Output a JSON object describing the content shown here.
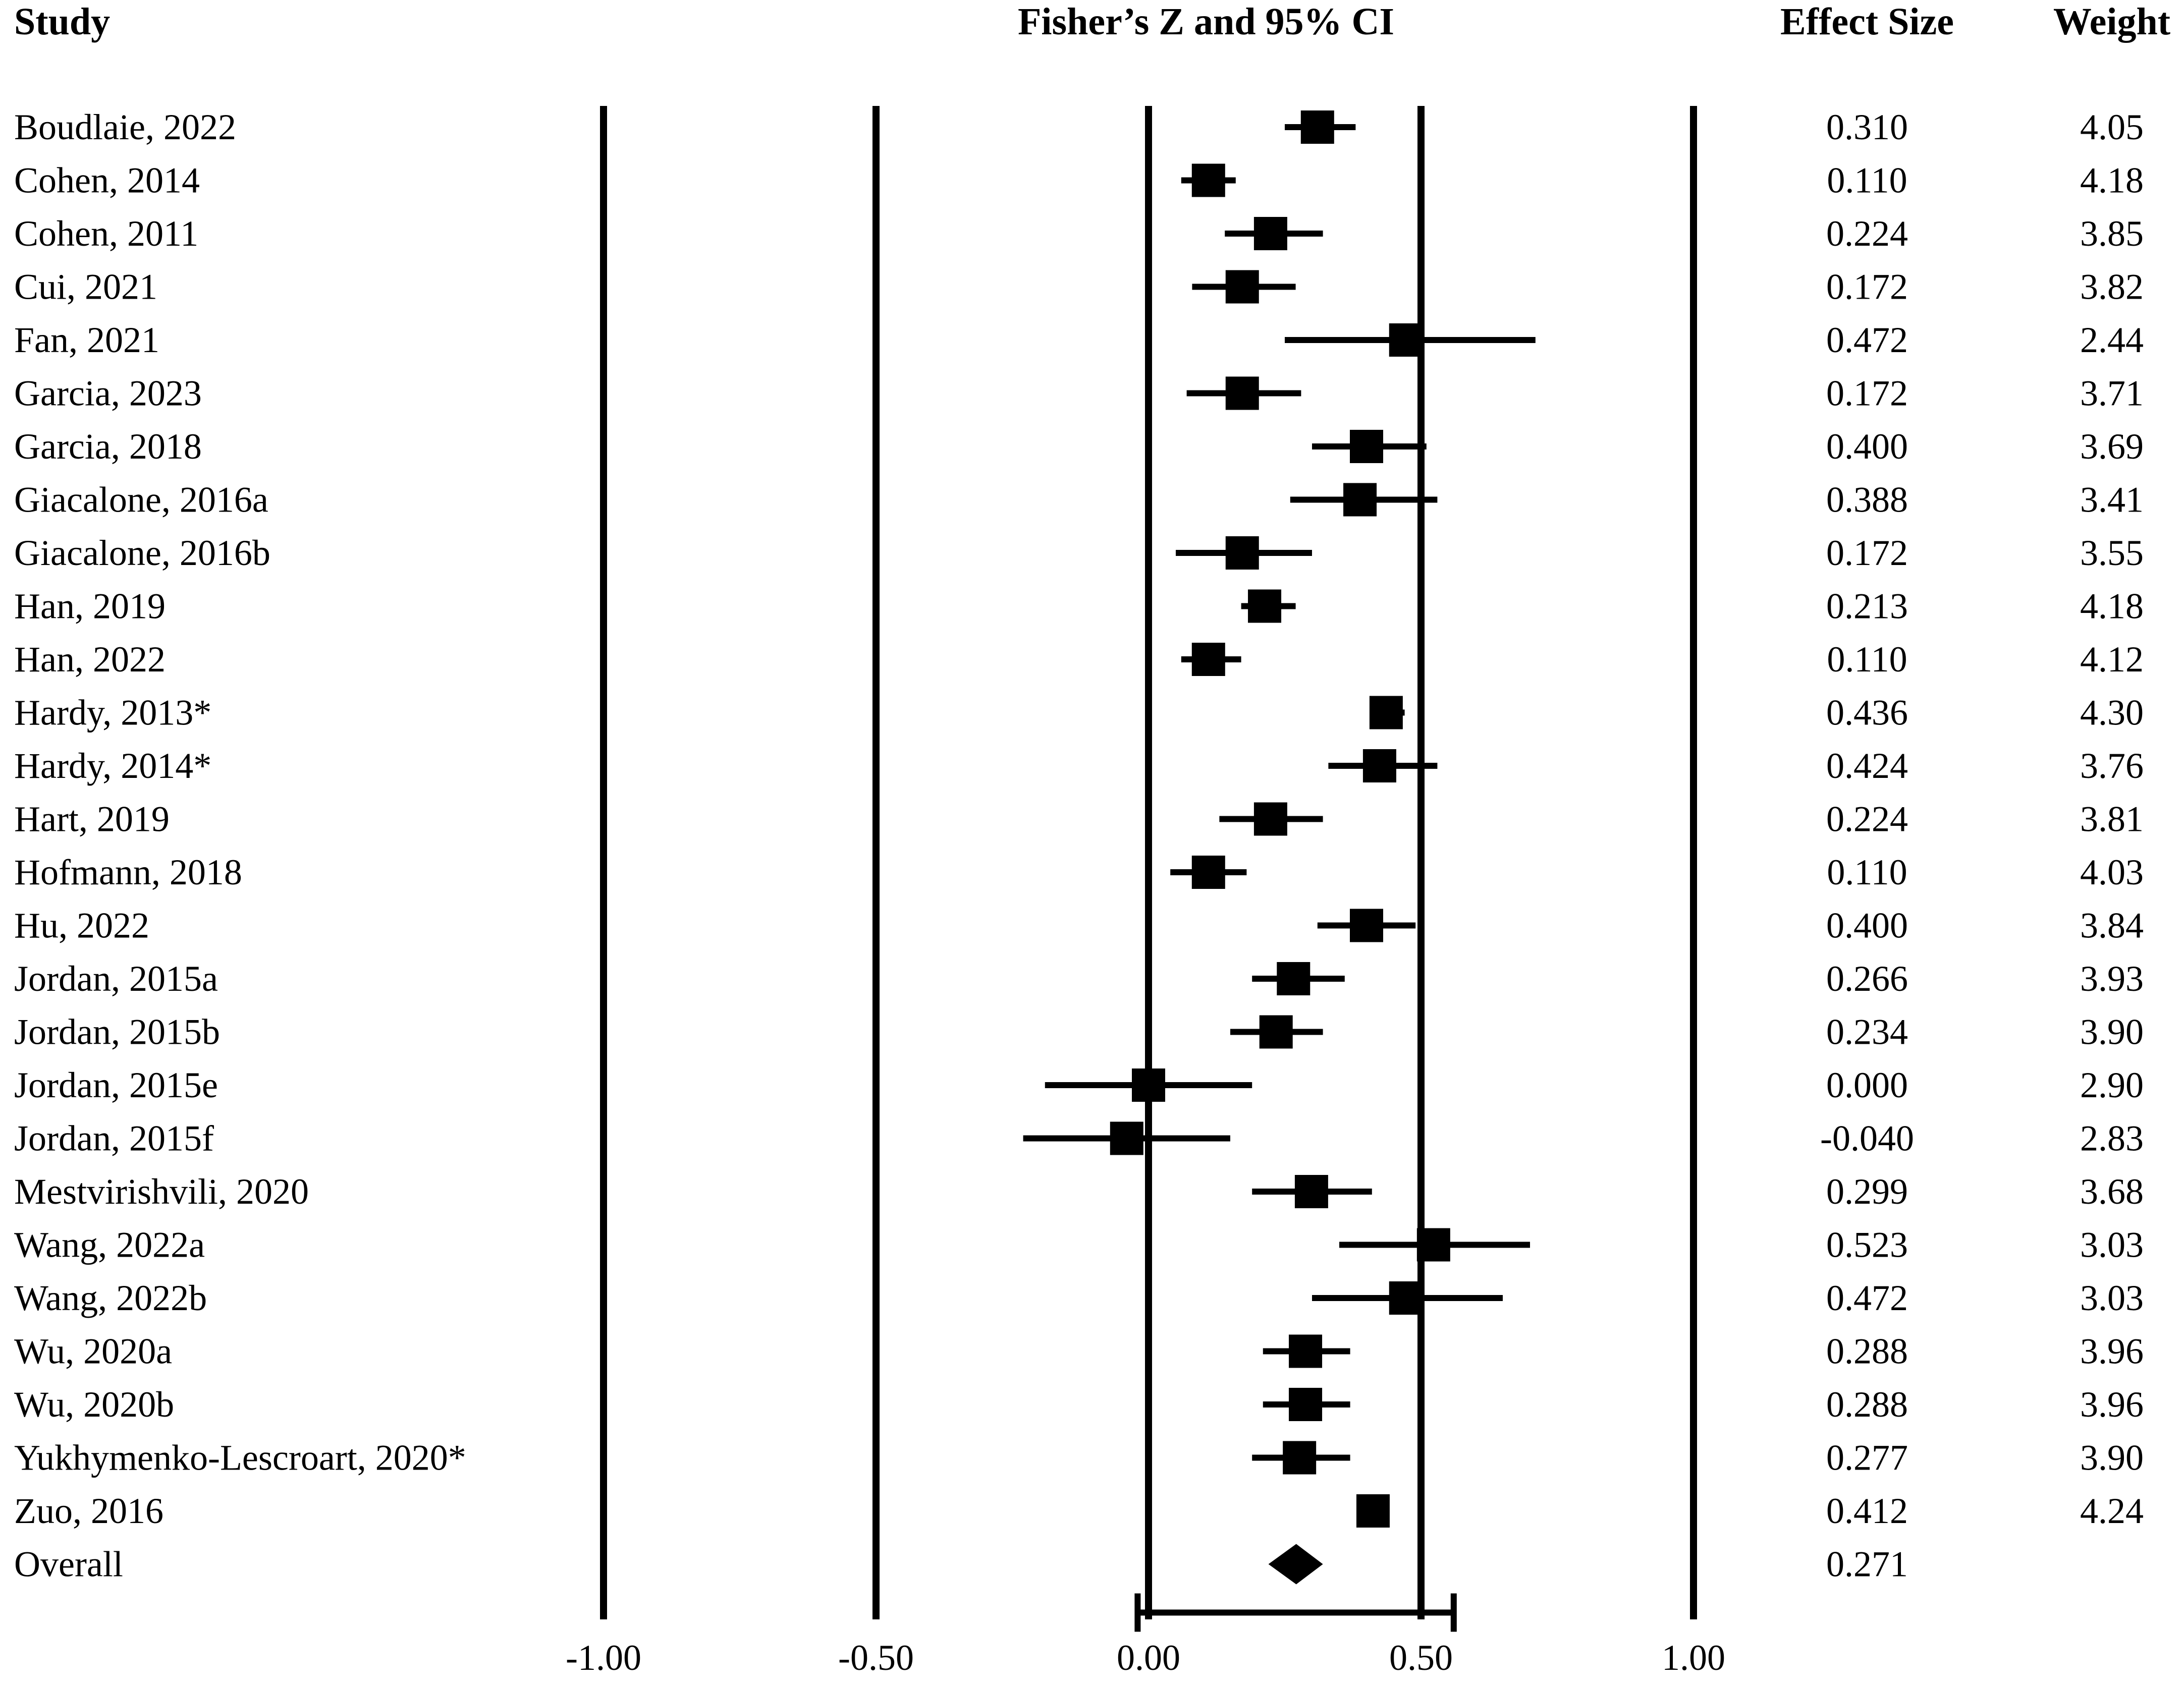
{
  "chart_data": {
    "type": "forest",
    "headers": {
      "study": "Study",
      "title": "Fisher’s Z and 95% CI",
      "effect_size": "Effect Size",
      "weight": "Weight"
    },
    "xlim": [
      -1.0,
      1.0
    ],
    "x_ticks": [
      -1.0,
      -0.5,
      0.0,
      0.5,
      1.0
    ],
    "x_tick_labels": [
      "-1.00",
      "-0.50",
      "0.00",
      "0.50",
      "1.00"
    ],
    "reference_lines": [
      -1.0,
      -0.5,
      0.0,
      0.5,
      1.0
    ],
    "studies": [
      {
        "name": "Boudlaie, 2022",
        "es": 0.31,
        "es_label": "0.310",
        "lower": 0.25,
        "upper": 0.38,
        "weight": "4.05"
      },
      {
        "name": "Cohen, 2014",
        "es": 0.11,
        "es_label": "0.110",
        "lower": 0.06,
        "upper": 0.16,
        "weight": "4.18"
      },
      {
        "name": "Cohen, 2011",
        "es": 0.224,
        "es_label": "0.224",
        "lower": 0.14,
        "upper": 0.32,
        "weight": "3.85"
      },
      {
        "name": "Cui, 2021",
        "es": 0.172,
        "es_label": "0.172",
        "lower": 0.08,
        "upper": 0.27,
        "weight": "3.82"
      },
      {
        "name": "Fan, 2021",
        "es": 0.472,
        "es_label": "0.472",
        "lower": 0.25,
        "upper": 0.71,
        "weight": "2.44"
      },
      {
        "name": "Garcia, 2023",
        "es": 0.172,
        "es_label": "0.172",
        "lower": 0.07,
        "upper": 0.28,
        "weight": "3.71"
      },
      {
        "name": "Garcia, 2018",
        "es": 0.4,
        "es_label": "0.400",
        "lower": 0.3,
        "upper": 0.51,
        "weight": "3.69"
      },
      {
        "name": "Giacalone, 2016a",
        "es": 0.388,
        "es_label": "0.388",
        "lower": 0.26,
        "upper": 0.53,
        "weight": "3.41"
      },
      {
        "name": "Giacalone, 2016b",
        "es": 0.172,
        "es_label": "0.172",
        "lower": 0.05,
        "upper": 0.3,
        "weight": "3.55"
      },
      {
        "name": "Han, 2019",
        "es": 0.213,
        "es_label": "0.213",
        "lower": 0.17,
        "upper": 0.27,
        "weight": "4.18"
      },
      {
        "name": "Han, 2022",
        "es": 0.11,
        "es_label": "0.110",
        "lower": 0.06,
        "upper": 0.17,
        "weight": "4.12"
      },
      {
        "name": "Hardy, 2013*",
        "es": 0.436,
        "es_label": "0.436",
        "lower": 0.41,
        "upper": 0.47,
        "weight": "4.30"
      },
      {
        "name": "Hardy, 2014*",
        "es": 0.424,
        "es_label": "0.424",
        "lower": 0.33,
        "upper": 0.53,
        "weight": "3.76"
      },
      {
        "name": "Hart, 2019",
        "es": 0.224,
        "es_label": "0.224",
        "lower": 0.13,
        "upper": 0.32,
        "weight": "3.81"
      },
      {
        "name": "Hofmann, 2018",
        "es": 0.11,
        "es_label": "0.110",
        "lower": 0.04,
        "upper": 0.18,
        "weight": "4.03"
      },
      {
        "name": "Hu, 2022",
        "es": 0.4,
        "es_label": "0.400",
        "lower": 0.31,
        "upper": 0.49,
        "weight": "3.84"
      },
      {
        "name": "Jordan, 2015a",
        "es": 0.266,
        "es_label": "0.266",
        "lower": 0.19,
        "upper": 0.36,
        "weight": "3.93"
      },
      {
        "name": "Jordan, 2015b",
        "es": 0.234,
        "es_label": "0.234",
        "lower": 0.15,
        "upper": 0.32,
        "weight": "3.90"
      },
      {
        "name": "Jordan, 2015e",
        "es": 0.0,
        "es_label": "0.000",
        "lower": -0.19,
        "upper": 0.19,
        "weight": "2.90"
      },
      {
        "name": "Jordan, 2015f",
        "es": -0.04,
        "es_label": "-0.040",
        "lower": -0.23,
        "upper": 0.15,
        "weight": "2.83"
      },
      {
        "name": "Mestvirishvili, 2020",
        "es": 0.299,
        "es_label": "0.299",
        "lower": 0.19,
        "upper": 0.41,
        "weight": "3.68"
      },
      {
        "name": "Wang, 2022a",
        "es": 0.523,
        "es_label": "0.523",
        "lower": 0.35,
        "upper": 0.7,
        "weight": "3.03"
      },
      {
        "name": "Wang, 2022b",
        "es": 0.472,
        "es_label": "0.472",
        "lower": 0.3,
        "upper": 0.65,
        "weight": "3.03"
      },
      {
        "name": "Wu, 2020a",
        "es": 0.288,
        "es_label": "0.288",
        "lower": 0.21,
        "upper": 0.37,
        "weight": "3.96"
      },
      {
        "name": "Wu, 2020b",
        "es": 0.288,
        "es_label": "0.288",
        "lower": 0.21,
        "upper": 0.37,
        "weight": "3.96"
      },
      {
        "name": "Yukhymenko-Lescroart, 2020*",
        "es": 0.277,
        "es_label": "0.277",
        "lower": 0.19,
        "upper": 0.37,
        "weight": "3.90"
      },
      {
        "name": "Zuo, 2016",
        "es": 0.412,
        "es_label": "0.412",
        "lower": 0.39,
        "upper": 0.44,
        "weight": "4.24"
      }
    ],
    "overall": {
      "name": "Overall",
      "es": 0.271,
      "es_label": "0.271",
      "lower": 0.22,
      "upper": 0.32
    },
    "prediction_interval": {
      "lower": -0.02,
      "upper": 0.56
    },
    "grid": false,
    "legend": "none"
  }
}
